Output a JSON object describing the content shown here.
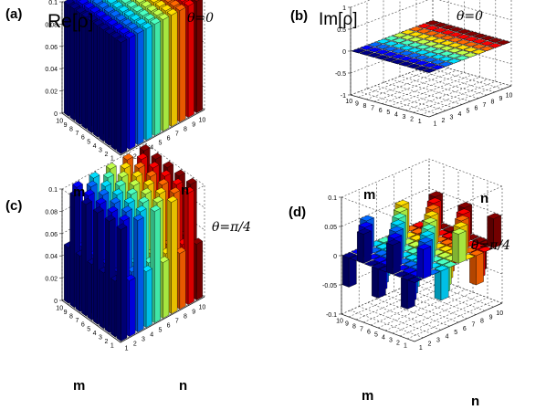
{
  "figure": {
    "colormap": "jet",
    "panels": [
      {
        "label": "(a)",
        "quantity": "Re[ρ]",
        "angle": "θ=0",
        "xlabel": "m",
        "ylabel": "n"
      },
      {
        "label": "(b)",
        "quantity": "Im[ρ]",
        "angle": "θ=0",
        "xlabel": "m",
        "ylabel": "n"
      },
      {
        "label": "(c)",
        "quantity": "",
        "angle": "θ=π/4",
        "xlabel": "m",
        "ylabel": "n"
      },
      {
        "label": "(d)",
        "quantity": "",
        "angle": "θ=π/4",
        "xlabel": "m",
        "ylabel": "n"
      }
    ]
  },
  "chart_data": [
    {
      "type": "bar3d",
      "label": "(a)",
      "title": "Re[ρ]",
      "annotation": "θ=0",
      "xlabel": "m",
      "ylabel": "n",
      "x": [
        1,
        2,
        3,
        4,
        5,
        6,
        7,
        8,
        9,
        10
      ],
      "y": [
        1,
        2,
        3,
        4,
        5,
        6,
        7,
        8,
        9,
        10
      ],
      "zlim": [
        0,
        0.1
      ],
      "zticks": [
        0,
        0.02,
        0.04,
        0.06,
        0.08,
        0.1
      ],
      "ztick_labels": [
        "0",
        "0.02",
        "0.04",
        "0.06",
        "0.08",
        "0.1"
      ],
      "grid": true,
      "z": [
        [
          0.1,
          0.1,
          0.1,
          0.1,
          0.1,
          0.1,
          0.1,
          0.1,
          0.1,
          0.1
        ],
        [
          0.1,
          0.1,
          0.1,
          0.1,
          0.1,
          0.1,
          0.1,
          0.1,
          0.1,
          0.1
        ],
        [
          0.1,
          0.1,
          0.1,
          0.1,
          0.1,
          0.1,
          0.1,
          0.1,
          0.1,
          0.1
        ],
        [
          0.1,
          0.1,
          0.1,
          0.1,
          0.1,
          0.1,
          0.1,
          0.1,
          0.1,
          0.1
        ],
        [
          0.1,
          0.1,
          0.1,
          0.1,
          0.1,
          0.1,
          0.1,
          0.1,
          0.1,
          0.1
        ],
        [
          0.1,
          0.1,
          0.1,
          0.1,
          0.1,
          0.1,
          0.1,
          0.1,
          0.1,
          0.1
        ],
        [
          0.1,
          0.1,
          0.1,
          0.1,
          0.1,
          0.1,
          0.1,
          0.1,
          0.1,
          0.1
        ],
        [
          0.1,
          0.1,
          0.1,
          0.1,
          0.1,
          0.1,
          0.1,
          0.1,
          0.1,
          0.1
        ],
        [
          0.1,
          0.1,
          0.1,
          0.1,
          0.1,
          0.1,
          0.1,
          0.1,
          0.1,
          0.1
        ],
        [
          0.1,
          0.1,
          0.1,
          0.1,
          0.1,
          0.1,
          0.1,
          0.1,
          0.1,
          0.1
        ]
      ]
    },
    {
      "type": "bar3d",
      "label": "(b)",
      "title": "Im[ρ]",
      "annotation": "θ=0",
      "xlabel": "m",
      "ylabel": "n",
      "x": [
        1,
        2,
        3,
        4,
        5,
        6,
        7,
        8,
        9,
        10
      ],
      "y": [
        1,
        2,
        3,
        4,
        5,
        6,
        7,
        8,
        9,
        10
      ],
      "zlim": [
        -1,
        1
      ],
      "zticks": [
        -1,
        -0.5,
        0,
        0.5,
        1
      ],
      "ztick_labels": [
        "-1",
        "-0.5",
        "0",
        "0.5",
        "1"
      ],
      "grid": true,
      "z": [
        [
          0,
          0,
          0,
          0,
          0,
          0,
          0,
          0,
          0,
          0
        ],
        [
          0,
          0,
          0,
          0,
          0,
          0,
          0,
          0,
          0,
          0
        ],
        [
          0,
          0,
          0,
          0,
          0,
          0,
          0,
          0,
          0,
          0
        ],
        [
          0,
          0,
          0,
          0,
          0,
          0,
          0,
          0,
          0,
          0
        ],
        [
          0,
          0,
          0,
          0,
          0,
          0,
          0,
          0,
          0,
          0
        ],
        [
          0,
          0,
          0,
          0,
          0,
          0,
          0,
          0,
          0,
          0
        ],
        [
          0,
          0,
          0,
          0,
          0,
          0,
          0,
          0,
          0,
          0
        ],
        [
          0,
          0,
          0,
          0,
          0,
          0,
          0,
          0,
          0,
          0
        ],
        [
          0,
          0,
          0,
          0,
          0,
          0,
          0,
          0,
          0,
          0
        ],
        [
          0,
          0,
          0,
          0,
          0,
          0,
          0,
          0,
          0,
          0
        ]
      ]
    },
    {
      "type": "bar3d",
      "label": "(c)",
      "annotation": "θ=π/4",
      "xlabel": "m",
      "ylabel": "n",
      "x": [
        1,
        2,
        3,
        4,
        5,
        6,
        7,
        8,
        9,
        10
      ],
      "y": [
        1,
        2,
        3,
        4,
        5,
        6,
        7,
        8,
        9,
        10
      ],
      "zlim": [
        0,
        0.1
      ],
      "zticks": [
        0,
        0.02,
        0.04,
        0.06,
        0.08,
        0.1
      ],
      "ztick_labels": [
        "0",
        "0.02",
        "0.04",
        "0.06",
        "0.08",
        "0.1"
      ],
      "grid": true,
      "z": [
        [
          0.1,
          0.05,
          0.1,
          0.05,
          0.1,
          0.05,
          0.1,
          0.05,
          0.1,
          0.05
        ],
        [
          0.05,
          0.1,
          0.05,
          0.1,
          0.05,
          0.1,
          0.05,
          0.1,
          0.05,
          0.1
        ],
        [
          0.1,
          0.05,
          0.1,
          0.05,
          0.1,
          0.05,
          0.1,
          0.05,
          0.1,
          0.05
        ],
        [
          0.05,
          0.1,
          0.05,
          0.1,
          0.05,
          0.1,
          0.05,
          0.1,
          0.05,
          0.1
        ],
        [
          0.1,
          0.05,
          0.1,
          0.05,
          0.1,
          0.05,
          0.1,
          0.05,
          0.1,
          0.05
        ],
        [
          0.05,
          0.1,
          0.05,
          0.1,
          0.05,
          0.1,
          0.05,
          0.1,
          0.05,
          0.1
        ],
        [
          0.1,
          0.05,
          0.1,
          0.05,
          0.1,
          0.05,
          0.1,
          0.05,
          0.1,
          0.05
        ],
        [
          0.05,
          0.1,
          0.05,
          0.1,
          0.05,
          0.1,
          0.05,
          0.1,
          0.05,
          0.1
        ],
        [
          0.1,
          0.05,
          0.1,
          0.05,
          0.1,
          0.05,
          0.1,
          0.05,
          0.1,
          0.05
        ],
        [
          0.05,
          0.1,
          0.05,
          0.1,
          0.05,
          0.1,
          0.05,
          0.1,
          0.05,
          0.1
        ]
      ]
    },
    {
      "type": "bar3d",
      "label": "(d)",
      "annotation": "θ=π/4",
      "xlabel": "m",
      "ylabel": "n",
      "x": [
        1,
        2,
        3,
        4,
        5,
        6,
        7,
        8,
        9,
        10
      ],
      "y": [
        1,
        2,
        3,
        4,
        5,
        6,
        7,
        8,
        9,
        10
      ],
      "zlim": [
        -0.1,
        0.1
      ],
      "zticks": [
        -0.1,
        -0.05,
        0,
        0.05,
        0.1
      ],
      "ztick_labels": [
        "-0.1",
        "-0.05",
        "0",
        "0.05",
        "0.1"
      ],
      "grid": true,
      "z": [
        [
          0,
          0.05,
          0,
          -0.05,
          0,
          0.05,
          0,
          -0.05,
          0,
          0.05
        ],
        [
          -0.05,
          0,
          0.05,
          0,
          -0.05,
          0,
          0.05,
          0,
          -0.05,
          0
        ],
        [
          0,
          -0.05,
          0,
          0.05,
          0,
          -0.05,
          0,
          0.05,
          0,
          -0.05
        ],
        [
          0.05,
          0,
          -0.05,
          0,
          0.05,
          0,
          -0.05,
          0,
          0.05,
          0
        ],
        [
          0,
          0.05,
          0,
          -0.05,
          0,
          0.05,
          0,
          -0.05,
          0,
          0.05
        ],
        [
          -0.05,
          0,
          0.05,
          0,
          -0.05,
          0,
          0.05,
          0,
          -0.05,
          0
        ],
        [
          0,
          -0.05,
          0,
          0.05,
          0,
          -0.05,
          0,
          0.05,
          0,
          -0.05
        ],
        [
          0.05,
          0,
          -0.05,
          0,
          0.05,
          0,
          -0.05,
          0,
          0.05,
          0
        ],
        [
          0,
          0.05,
          0,
          -0.05,
          0,
          0.05,
          0,
          -0.05,
          0,
          0.05
        ],
        [
          -0.05,
          0,
          0.05,
          0,
          -0.05,
          0,
          0.05,
          0,
          -0.05,
          0
        ]
      ]
    }
  ]
}
